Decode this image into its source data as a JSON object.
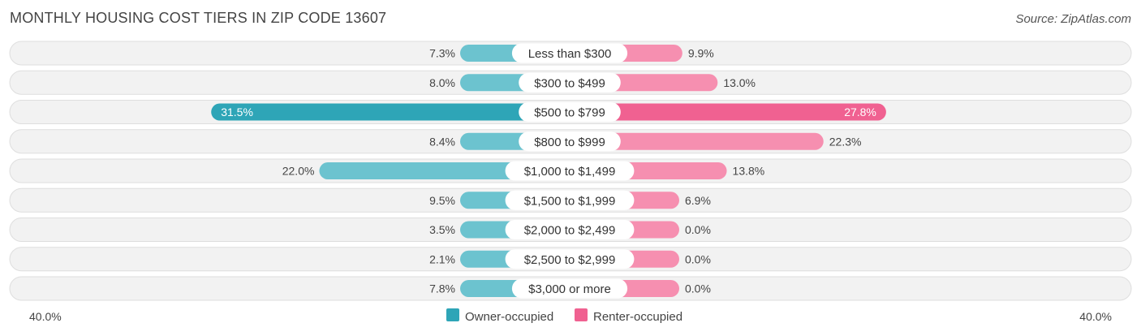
{
  "header": {
    "title": "MONTHLY HOUSING COST TIERS IN ZIP CODE 13607",
    "source": "Source: ZipAtlas.com"
  },
  "chart_data": {
    "type": "bar",
    "orientation": "horizontal-diverging",
    "categories": [
      "Less than $300",
      "$300 to $499",
      "$500 to $799",
      "$800 to $999",
      "$1,000 to $1,499",
      "$1,500 to $1,999",
      "$2,000 to $2,499",
      "$2,500 to $2,999",
      "$3,000 or more"
    ],
    "series": [
      {
        "name": "Owner-occupied",
        "color": "#6cc3cf",
        "highlight_color": "#2ea5b7",
        "values": [
          7.3,
          8.0,
          31.5,
          8.4,
          22.0,
          9.5,
          3.5,
          2.1,
          7.8
        ],
        "labels": [
          "7.3%",
          "8.0%",
          "31.5%",
          "8.4%",
          "22.0%",
          "9.5%",
          "3.5%",
          "2.1%",
          "7.8%"
        ]
      },
      {
        "name": "Renter-occupied",
        "color": "#f68fb0",
        "highlight_color": "#f06191",
        "values": [
          9.9,
          13.0,
          27.8,
          22.3,
          13.8,
          6.9,
          0.0,
          0.0,
          0.0
        ],
        "labels": [
          "9.9%",
          "13.0%",
          "27.8%",
          "22.3%",
          "13.8%",
          "6.9%",
          "0.0%",
          "0.0%",
          "0.0%"
        ]
      }
    ],
    "highlight_index": 2,
    "axis": {
      "left_label": "40.0%",
      "right_label": "40.0%",
      "max": 40.0
    },
    "legend_position": "bottom-center"
  }
}
